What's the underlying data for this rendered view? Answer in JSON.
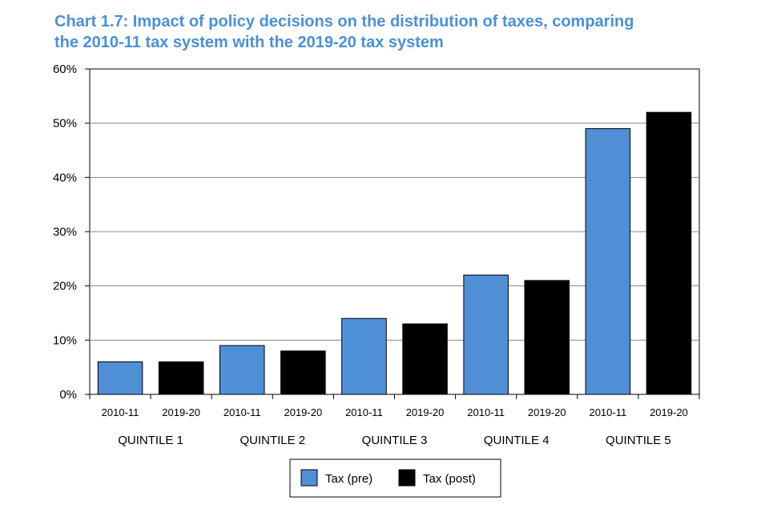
{
  "title_line1": "Chart 1.7: Impact of policy decisions on the distribution of taxes, comparing",
  "title_line2": "the 2010-11 tax system with the 2019-20 tax system",
  "chart_data": {
    "type": "bar",
    "title": "Chart 1.7: Impact of policy decisions on the distribution of taxes, comparing the 2010-11 tax system with the 2019-20 tax system",
    "groups": [
      "QUINTILE 1",
      "QUINTILE 2",
      "QUINTILE 3",
      "QUINTILE 4",
      "QUINTILE 5"
    ],
    "bar_labels": [
      "2010-11",
      "2019-20"
    ],
    "series": [
      {
        "name": "Tax (pre)",
        "color": "#4f8fd6",
        "values": [
          6,
          9,
          14,
          22,
          49
        ]
      },
      {
        "name": "Tax (post)",
        "color": "#000000",
        "values": [
          6,
          8,
          13,
          21,
          52
        ]
      }
    ],
    "ylim": [
      0,
      60
    ],
    "yticks": [
      0,
      10,
      20,
      30,
      40,
      50,
      60
    ],
    "ytick_labels": [
      "0%",
      "10%",
      "20%",
      "30%",
      "40%",
      "50%",
      "60%"
    ],
    "grid": true,
    "legend_position": "bottom-center"
  }
}
